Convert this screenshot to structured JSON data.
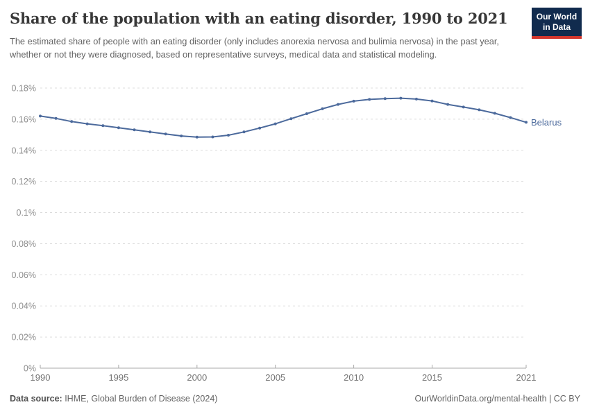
{
  "header": {
    "title": "Share of the population with an eating disorder, 1990 to 2021",
    "subtitle": "The estimated share of people with an eating disorder (only includes anorexia nervosa and bulimia nervosa) in the past year, whether or not they were diagnosed, based on representative surveys, medical data and statistical modeling.",
    "logo": {
      "line1": "Our World",
      "line2": "in Data",
      "bg_color": "#112b4e",
      "accent_color": "#d3362d"
    }
  },
  "chart_data": {
    "type": "line",
    "title": "Share of the population with an eating disorder, 1990 to 2021",
    "xlabel": "",
    "ylabel": "",
    "xlim": [
      1990,
      2021
    ],
    "ylim": [
      0,
      0.18
    ],
    "grid": "horizontal-dashed",
    "legend_position": "end-of-line-label",
    "x_ticks": [
      1990,
      1995,
      2000,
      2005,
      2010,
      2015,
      2021
    ],
    "y_ticks": [
      {
        "value": 0,
        "label": "0%"
      },
      {
        "value": 0.02,
        "label": "0.02%"
      },
      {
        "value": 0.04,
        "label": "0.04%"
      },
      {
        "value": 0.06,
        "label": "0.06%"
      },
      {
        "value": 0.08,
        "label": "0.08%"
      },
      {
        "value": 0.1,
        "label": "0.1%"
      },
      {
        "value": 0.12,
        "label": "0.12%"
      },
      {
        "value": 0.14,
        "label": "0.14%"
      },
      {
        "value": 0.16,
        "label": "0.16%"
      },
      {
        "value": 0.18,
        "label": "0.18%"
      }
    ],
    "series": [
      {
        "name": "Belarus",
        "color": "#4C6A9C",
        "x": [
          1990,
          1991,
          1992,
          1993,
          1994,
          1995,
          1996,
          1997,
          1998,
          1999,
          2000,
          2001,
          2002,
          2003,
          2004,
          2005,
          2006,
          2007,
          2008,
          2009,
          2010,
          2011,
          2012,
          2013,
          2014,
          2015,
          2016,
          2017,
          2018,
          2019,
          2020,
          2021
        ],
        "values": [
          0.162,
          0.1605,
          0.1585,
          0.157,
          0.1558,
          0.1545,
          0.1532,
          0.1518,
          0.1505,
          0.1492,
          0.1485,
          0.1486,
          0.1497,
          0.1518,
          0.1543,
          0.157,
          0.1603,
          0.1635,
          0.1667,
          0.1695,
          0.1716,
          0.1727,
          0.1732,
          0.1735,
          0.1729,
          0.1717,
          0.1695,
          0.1678,
          0.166,
          0.1638,
          0.161,
          0.158
        ]
      }
    ]
  },
  "footer": {
    "source_label": "Data source:",
    "source_text": " IHME, Global Burden of Disease (2024)",
    "credit": "OurWorldinData.org/mental-health | CC BY"
  }
}
